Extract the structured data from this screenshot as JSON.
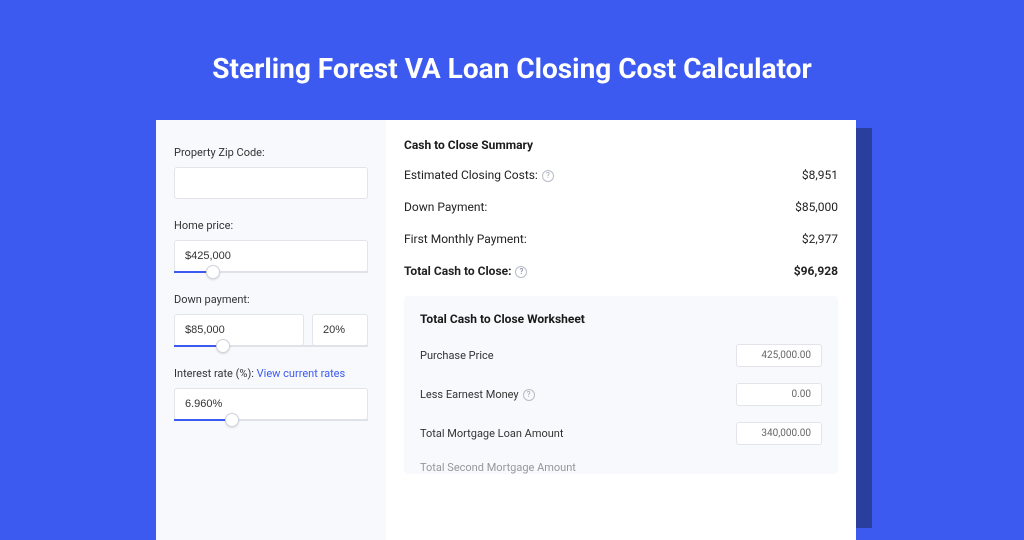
{
  "title": "Sterling Forest VA Loan Closing Cost Calculator",
  "colors": {
    "page_bg": "#3c5af0",
    "card_bg": "#ffffff",
    "shadow_bg": "#2a3e9e",
    "sidebar_bg": "#f8f9fc",
    "worksheet_bg": "#f8f9fc",
    "input_border": "#e2e4ea",
    "slider_track": "#e0e2ea",
    "slider_fill": "#3c5af0",
    "link": "#3c5af0",
    "text": "#333333",
    "title_text": "#ffffff"
  },
  "sidebar": {
    "zip": {
      "label": "Property Zip Code:",
      "value": ""
    },
    "home_price": {
      "label": "Home price:",
      "value": "$425,000",
      "slider_pct": 20
    },
    "down_payment": {
      "label": "Down payment:",
      "amount": "$85,000",
      "pct": "20%",
      "slider_pct": 25
    },
    "interest_rate": {
      "label": "Interest rate (%):",
      "link_text": "View current rates",
      "value": "6.960%",
      "slider_pct": 30
    }
  },
  "summary": {
    "title": "Cash to Close Summary",
    "rows": [
      {
        "label": "Estimated Closing Costs:",
        "help": true,
        "value": "$8,951",
        "total": false
      },
      {
        "label": "Down Payment:",
        "help": false,
        "value": "$85,000",
        "total": false
      },
      {
        "label": "First Monthly Payment:",
        "help": false,
        "value": "$2,977",
        "total": false
      },
      {
        "label": "Total Cash to Close:",
        "help": true,
        "value": "$96,928",
        "total": true
      }
    ]
  },
  "worksheet": {
    "title": "Total Cash to Close Worksheet",
    "rows": [
      {
        "label": "Purchase Price",
        "help": false,
        "value": "425,000.00"
      },
      {
        "label": "Less Earnest Money",
        "help": true,
        "value": "0.00"
      },
      {
        "label": "Total Mortgage Loan Amount",
        "help": false,
        "value": "340,000.00"
      }
    ],
    "cutoff_label": "Total Second Mortgage Amount"
  }
}
